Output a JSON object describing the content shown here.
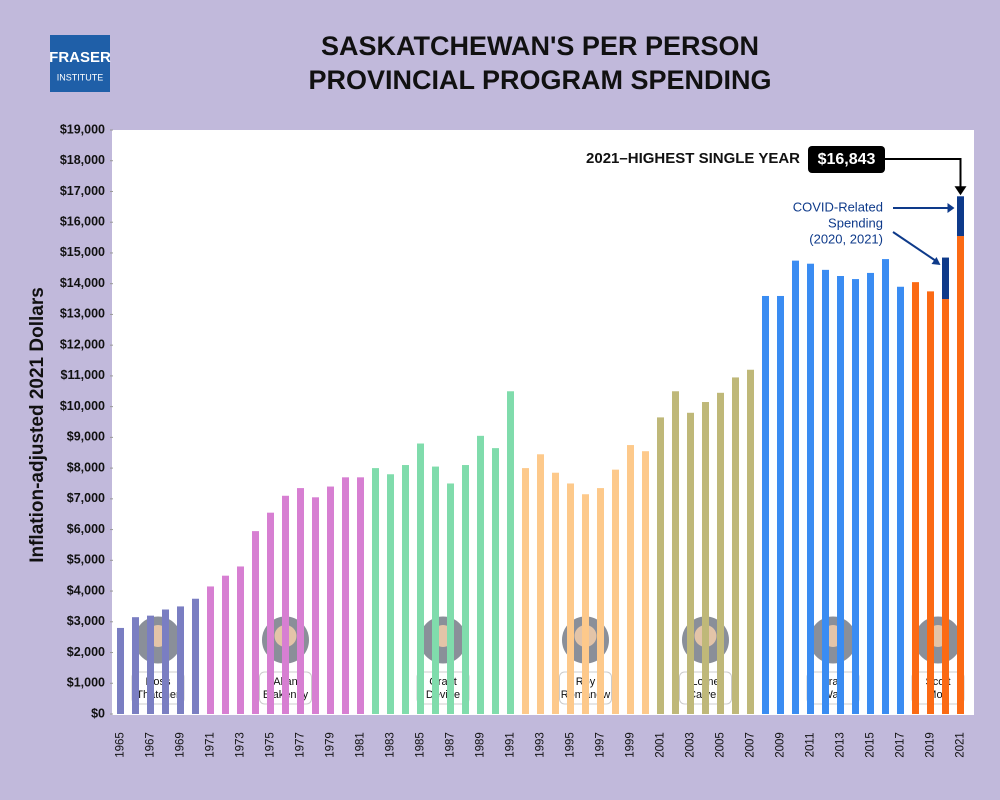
{
  "chart_data": {
    "type": "bar",
    "title": [
      "SASKATCHEWAN'S PER PERSON",
      "PROVINCIAL PROGRAM SPENDING"
    ],
    "logo": [
      "FRASER",
      "INSTITUTE"
    ],
    "y_label": "Inflation-adjusted 2021 Dollars",
    "categories": [
      "1965",
      null,
      "1967",
      null,
      "1969",
      null,
      "1971",
      null,
      "1973",
      null,
      "1975",
      null,
      "1977",
      null,
      "1979",
      null,
      "1981",
      null,
      "1983",
      null,
      "1985",
      null,
      "1987",
      null,
      "1989",
      null,
      "1991",
      null,
      "1993",
      null,
      "1995",
      null,
      "1997",
      null,
      "1999",
      null,
      "2001",
      null,
      "2003",
      null,
      "2005",
      null,
      "2007",
      null,
      "2009",
      null,
      "2011",
      null,
      "2013",
      null,
      "2015",
      null,
      "2017",
      null,
      "2019",
      null,
      "2021"
    ],
    "values": [
      2800,
      3150,
      3200,
      3400,
      3500,
      3750,
      4150,
      4500,
      4800,
      5950,
      6550,
      7100,
      7350,
      7050,
      7400,
      7700,
      7700,
      8000,
      7800,
      8100,
      8800,
      8050,
      7500,
      8100,
      9050,
      8650,
      10500,
      8000,
      8450,
      7850,
      7500,
      7150,
      7350,
      7950,
      8750,
      8550,
      9650,
      10500,
      9800,
      10150,
      10450,
      10950,
      11200,
      13600,
      13600,
      14750,
      14650,
      14450,
      14250,
      14150,
      14350,
      14800,
      13900,
      14050,
      13750,
      13500,
      15550
    ],
    "covid": {
      "lines": [
        "COVID-Related",
        "Spending",
        "(2020, 2021)"
      ],
      "color": "#0e3a8a",
      "values": [
        null,
        null,
        null,
        null,
        null,
        null,
        null,
        null,
        null,
        null,
        null,
        null,
        null,
        null,
        null,
        null,
        null,
        null,
        null,
        null,
        null,
        null,
        null,
        null,
        null,
        null,
        null,
        null,
        null,
        null,
        null,
        null,
        null,
        null,
        null,
        null,
        null,
        null,
        null,
        null,
        null,
        null,
        null,
        null,
        null,
        null,
        null,
        null,
        null,
        null,
        null,
        null,
        null,
        null,
        null,
        1350,
        1293
      ]
    },
    "premiers": [
      {
        "first": "Ross",
        "last": "Thatcher",
        "color": "#7a7ec2",
        "count": 6
      },
      {
        "first": "Allan",
        "last": "Blakeney",
        "color": "#d77fd2",
        "count": 11
      },
      {
        "first": "Grant",
        "last": "Devine",
        "color": "#80dcac",
        "count": 10
      },
      {
        "first": "Roy",
        "last": "Romanow",
        "color": "#fdc98b",
        "count": 9
      },
      {
        "first": "Lorne",
        "last": "Calvert",
        "color": "#bfb879",
        "count": 7
      },
      {
        "first": "Brad",
        "last": "Wall",
        "color": "#3a8cf2",
        "count": 10
      },
      {
        "first": "Scott",
        "last": "Moe",
        "color": "#fb6a14",
        "count": 4
      }
    ],
    "highlight": {
      "text": "2021–HIGHEST SINGLE YEAR",
      "value": 16843,
      "label": "$16,843"
    },
    "ylim": [
      0,
      19000
    ],
    "yticks": [
      {
        "value": 0,
        "label": "$0"
      },
      {
        "value": 1000,
        "label": "$1,000"
      },
      {
        "value": 2000,
        "label": "$2,000"
      },
      {
        "value": 3000,
        "label": "$3,000"
      },
      {
        "value": 4000,
        "label": "$4,000"
      },
      {
        "value": 5000,
        "label": "$5,000"
      },
      {
        "value": 6000,
        "label": "$6,000"
      },
      {
        "value": 7000,
        "label": "$7,000"
      },
      {
        "value": 8000,
        "label": "$8,000"
      },
      {
        "value": 9000,
        "label": "$9,000"
      },
      {
        "value": 10000,
        "label": "$10,000"
      },
      {
        "value": 11000,
        "label": "$11,000"
      },
      {
        "value": 12000,
        "label": "$12,000"
      },
      {
        "value": 13000,
        "label": "$13,000"
      },
      {
        "value": 14000,
        "label": "$14,000"
      },
      {
        "value": 15000,
        "label": "$15,000"
      },
      {
        "value": 16000,
        "label": "$16,000"
      },
      {
        "value": 17000,
        "label": "$17,000"
      },
      {
        "value": 18000,
        "label": "$18,000"
      },
      {
        "value": 19000,
        "label": "$19,000"
      }
    ],
    "grid": false
  }
}
